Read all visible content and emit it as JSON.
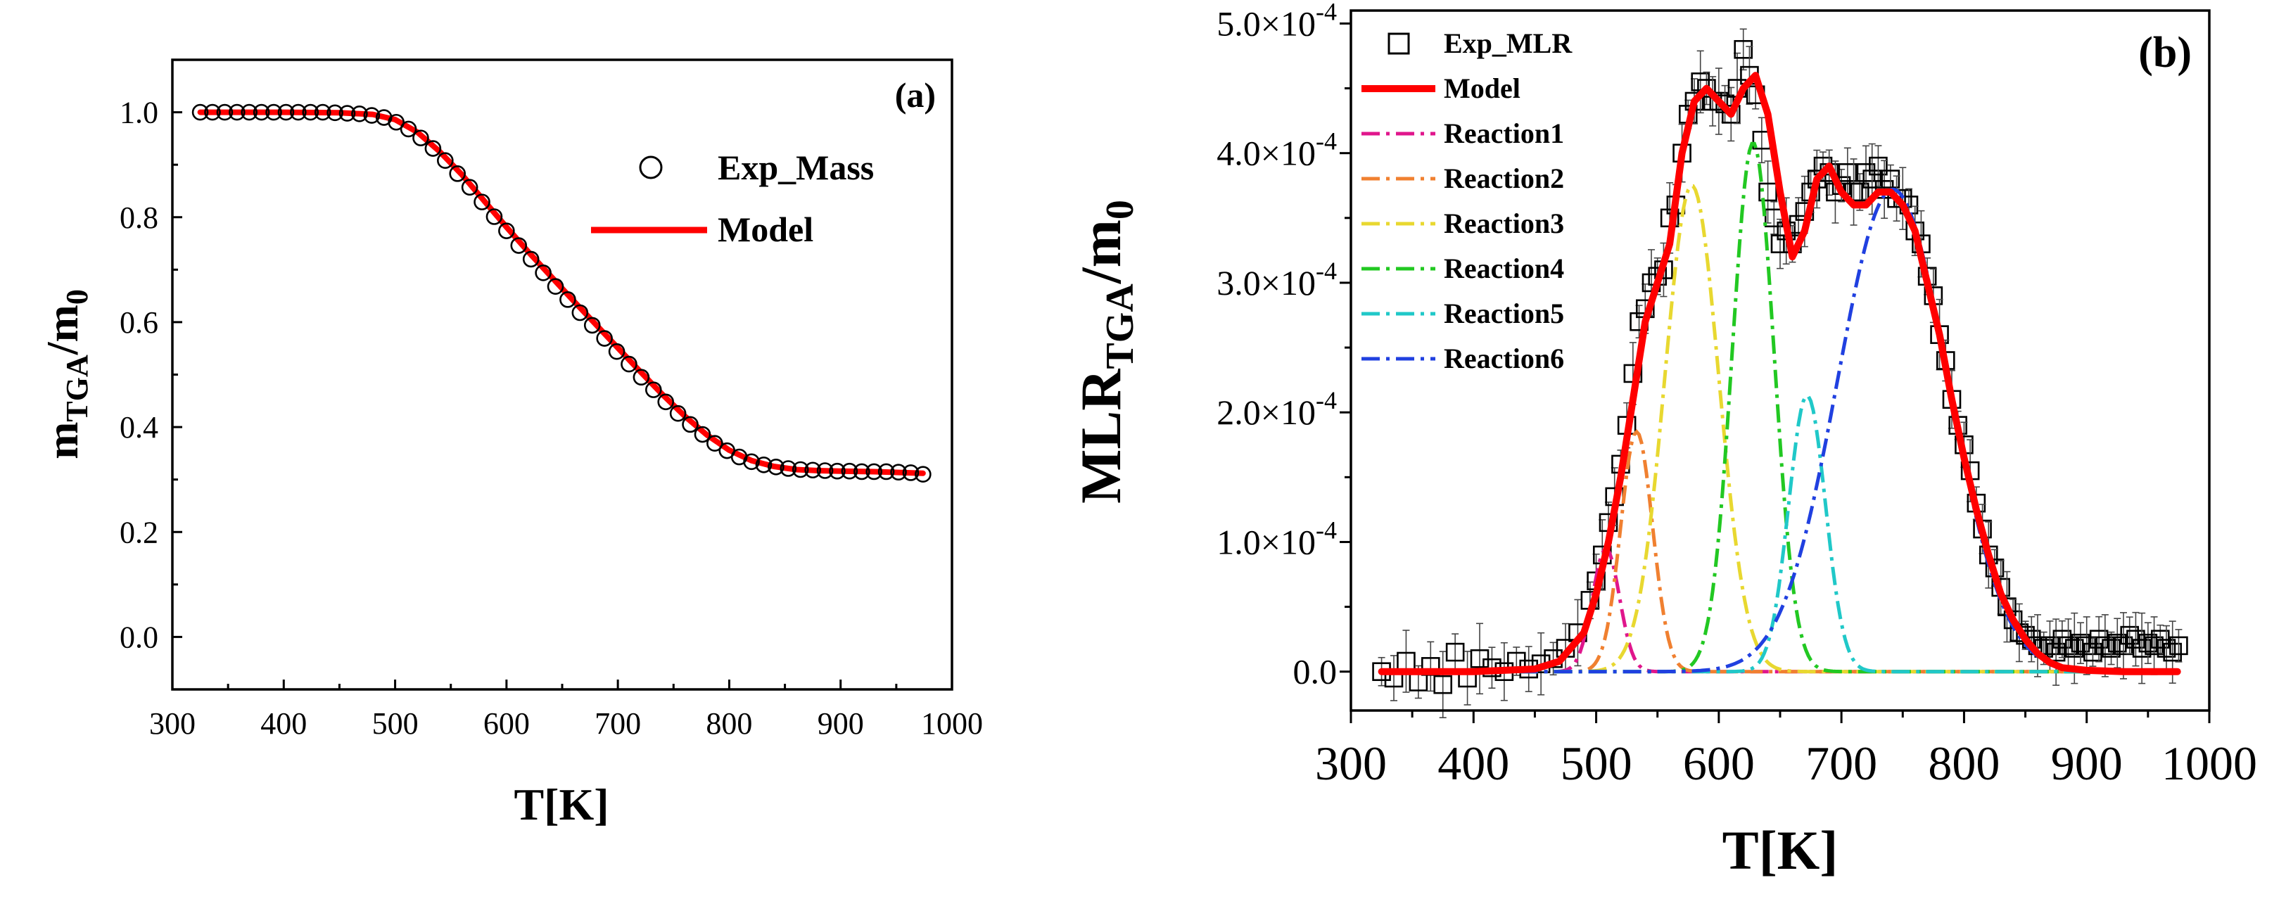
{
  "chart_data": [
    {
      "type": "scatter+line",
      "panel_label": "(a)",
      "xlabel": {
        "main": "T[K]"
      },
      "ylabel": {
        "main": "m",
        "sub": "TGA",
        "rest": "/m",
        "sub2": "0"
      },
      "xlim": [
        300,
        1000
      ],
      "ylim": [
        -0.1,
        1.1
      ],
      "xticks": [
        "300",
        "400",
        "500",
        "600",
        "700",
        "800",
        "900",
        "1000"
      ],
      "yticks": [
        "0.0",
        "0.2",
        "0.4",
        "0.6",
        "0.8",
        "1.0"
      ],
      "legend": {
        "position": "top-right",
        "entries": [
          "Exp_Mass",
          "Model"
        ]
      },
      "series": [
        {
          "name": "Exp_Mass",
          "style": "open-circle",
          "x": [
            325,
            336,
            347,
            358,
            369,
            380,
            391,
            402,
            413,
            424,
            435,
            446,
            457,
            468,
            479,
            490,
            501,
            512,
            523,
            534,
            545,
            556,
            567,
            578,
            589,
            600,
            611,
            622,
            633,
            644,
            655,
            666,
            677,
            688,
            699,
            710,
            721,
            732,
            743,
            754,
            765,
            776,
            787,
            798,
            809,
            820,
            831,
            842,
            853,
            864,
            875,
            886,
            897,
            908,
            919,
            930,
            941,
            952,
            963,
            974
          ],
          "y": [
            1.0,
            1.0,
            1.0,
            1.0,
            1.0,
            1.0,
            1.0,
            1.0,
            1.0,
            1.0,
            1.0,
            0.999,
            0.998,
            0.997,
            0.994,
            0.99,
            0.981,
            0.968,
            0.951,
            0.931,
            0.908,
            0.883,
            0.857,
            0.829,
            0.801,
            0.774,
            0.746,
            0.72,
            0.694,
            0.668,
            0.643,
            0.618,
            0.594,
            0.569,
            0.544,
            0.52,
            0.495,
            0.471,
            0.448,
            0.426,
            0.405,
            0.386,
            0.369,
            0.355,
            0.343,
            0.334,
            0.328,
            0.324,
            0.321,
            0.319,
            0.318,
            0.317,
            0.316,
            0.316,
            0.315,
            0.315,
            0.315,
            0.314,
            0.313,
            0.31
          ]
        },
        {
          "name": "Model",
          "style": "line",
          "color": "#ff0000",
          "x": [
            325,
            400,
            450,
            480,
            500,
            520,
            540,
            560,
            580,
            600,
            620,
            640,
            660,
            680,
            700,
            720,
            740,
            760,
            780,
            800,
            820,
            840,
            860,
            880,
            900,
            930,
            974
          ],
          "y": [
            1.0,
            1.0,
            0.999,
            0.996,
            0.986,
            0.962,
            0.925,
            0.881,
            0.831,
            0.781,
            0.733,
            0.687,
            0.641,
            0.596,
            0.551,
            0.506,
            0.462,
            0.421,
            0.385,
            0.356,
            0.336,
            0.325,
            0.319,
            0.317,
            0.316,
            0.315,
            0.312
          ]
        }
      ]
    },
    {
      "type": "scatter+line",
      "panel_label": "(b)",
      "xlabel": {
        "main": "T[K]"
      },
      "ylabel": {
        "main": "MLR",
        "sub": "TGA",
        "rest": "/m",
        "sub2": "0"
      },
      "xlim": [
        300,
        1000
      ],
      "ylim": [
        -3e-05,
        0.00051
      ],
      "xticks": [
        "300",
        "400",
        "500",
        "600",
        "700",
        "800",
        "900",
        "1000"
      ],
      "yticks": [
        {
          "value": 0,
          "label": "0.0"
        },
        {
          "value": 0.0001,
          "mant": "1.0",
          "times": "×10",
          "exp": "-4"
        },
        {
          "value": 0.0002,
          "mant": "2.0",
          "times": "×10",
          "exp": "-4"
        },
        {
          "value": 0.0003,
          "mant": "3.0",
          "times": "×10",
          "exp": "-4"
        },
        {
          "value": 0.0004,
          "mant": "4.0",
          "times": "×10",
          "exp": "-4"
        },
        {
          "value": 0.0005,
          "mant": "5.0",
          "times": "×10",
          "exp": "-4"
        }
      ],
      "legend": {
        "position": "top-left",
        "entries": [
          {
            "name": "Exp_MLR",
            "style": "open-square",
            "color": "#000000"
          },
          {
            "name": "Model",
            "style": "solid",
            "color": "#ff0000"
          },
          {
            "name": "Reaction1",
            "style": "dashdot",
            "color": "#e0168c"
          },
          {
            "name": "Reaction2",
            "style": "dashdot",
            "color": "#f08030"
          },
          {
            "name": "Reaction3",
            "style": "dashdot",
            "color": "#e8d830"
          },
          {
            "name": "Reaction4",
            "style": "dashdot",
            "color": "#22c822"
          },
          {
            "name": "Reaction5",
            "style": "dashdot",
            "color": "#20c8c8"
          },
          {
            "name": "Reaction6",
            "style": "dashdot",
            "color": "#2040e0"
          }
        ]
      },
      "reactions": [
        {
          "name": "Reaction1",
          "peak_T": 508,
          "peak_value": 9.5e-05,
          "width": 11,
          "color": "#e0168c"
        },
        {
          "name": "Reaction2",
          "peak_T": 533,
          "peak_value": 0.000185,
          "width": 13,
          "color": "#f08030"
        },
        {
          "name": "Reaction3",
          "peak_T": 578,
          "peak_value": 0.000375,
          "width": 22,
          "color": "#e8d830"
        },
        {
          "name": "Reaction4",
          "peak_T": 628,
          "peak_value": 0.000408,
          "width": 17,
          "color": "#22c822"
        },
        {
          "name": "Reaction5",
          "peak_T": 672,
          "peak_value": 0.000213,
          "width": 15,
          "color": "#20c8c8"
        },
        {
          "name": "Reaction6",
          "peak_T": 742,
          "peak_value": 0.000372,
          "width": 45,
          "color": "#2040e0"
        }
      ],
      "model": {
        "name": "Model",
        "color": "#ff0000",
        "x": [
          325,
          400,
          450,
          470,
          490,
          500,
          510,
          520,
          530,
          540,
          550,
          560,
          570,
          580,
          590,
          600,
          610,
          620,
          630,
          640,
          650,
          660,
          670,
          680,
          690,
          700,
          710,
          720,
          730,
          740,
          750,
          760,
          770,
          780,
          790,
          800,
          810,
          820,
          830,
          840,
          850,
          860,
          870,
          880,
          900,
          930,
          974
        ],
        "y": [
          0.0,
          0.0,
          2e-06,
          8e-06,
          3e-05,
          6e-05,
          0.0001,
          0.00015,
          0.00021,
          0.00027,
          0.0003,
          0.00033,
          0.0004,
          0.00044,
          0.00045,
          0.00044,
          0.00043,
          0.00045,
          0.00046,
          0.00043,
          0.00037,
          0.00032,
          0.00034,
          0.00038,
          0.00039,
          0.00037,
          0.00036,
          0.00036,
          0.00037,
          0.00037,
          0.00036,
          0.00034,
          0.0003,
          0.00026,
          0.00021,
          0.000165,
          0.000125,
          9e-05,
          6e-05,
          4e-05,
          2.5e-05,
          1.4e-05,
          7e-06,
          3e-06,
          1e-06,
          0.0,
          0.0
        ]
      },
      "experiment": {
        "name": "Exp_MLR",
        "x": [
          325,
          335,
          345,
          355,
          365,
          375,
          385,
          395,
          405,
          415,
          425,
          435,
          445,
          455,
          465,
          475,
          485,
          495,
          500,
          505,
          510,
          515,
          520,
          525,
          530,
          535,
          540,
          545,
          550,
          555,
          560,
          565,
          570,
          575,
          580,
          585,
          590,
          595,
          600,
          605,
          610,
          615,
          620,
          625,
          630,
          635,
          640,
          645,
          650,
          655,
          660,
          665,
          670,
          675,
          680,
          685,
          690,
          695,
          700,
          705,
          710,
          715,
          720,
          725,
          730,
          735,
          740,
          745,
          750,
          755,
          760,
          765,
          770,
          775,
          780,
          785,
          790,
          795,
          800,
          805,
          810,
          815,
          820,
          825,
          830,
          835,
          840,
          845,
          850,
          855,
          860,
          865,
          870,
          875,
          880,
          885,
          890,
          895,
          900,
          905,
          910,
          915,
          920,
          925,
          930,
          935,
          940,
          945,
          950,
          955,
          960,
          965,
          970,
          975
        ],
        "y": [
          0.0,
          -5e-06,
          8e-06,
          -8e-06,
          4e-06,
          -1e-05,
          1.5e-05,
          -5e-06,
          1e-05,
          3e-06,
          0.0,
          8e-06,
          2e-06,
          6e-06,
          1e-05,
          1.8e-05,
          3e-05,
          5.5e-05,
          7e-05,
          9e-05,
          0.000115,
          0.000135,
          0.00016,
          0.00019,
          0.00023,
          0.00027,
          0.00028,
          0.0003,
          0.000305,
          0.00031,
          0.00035,
          0.00036,
          0.0004,
          0.00043,
          0.00044,
          0.000455,
          0.00045,
          0.00044,
          0.00044,
          0.000438,
          0.00043,
          0.00045,
          0.00048,
          0.00046,
          0.000445,
          0.00041,
          0.00037,
          0.00035,
          0.00033,
          0.00034,
          0.00033,
          0.000345,
          0.000355,
          0.00037,
          0.00038,
          0.00039,
          0.000385,
          0.00037,
          0.000375,
          0.000385,
          0.00037,
          0.00037,
          0.000385,
          0.00038,
          0.00039,
          0.000372,
          0.00038,
          0.000365,
          0.000365,
          0.00036,
          0.00034,
          0.00033,
          0.000305,
          0.00029,
          0.00026,
          0.00024,
          0.00021,
          0.00019,
          0.000175,
          0.000155,
          0.00013,
          0.00011,
          9e-05,
          8e-05,
          6.5e-05,
          5e-05,
          4e-05,
          3e-05,
          2.8e-05,
          2.5e-05,
          2e-05,
          1.8e-05,
          2e-05,
          1.5e-05,
          2.5e-05,
          2e-05,
          1.8e-05,
          2.2e-05,
          2e-05,
          1.5e-05,
          2.5e-05,
          2e-05,
          1.8e-05,
          2.2e-05,
          2e-05,
          2.8e-05,
          2.5e-05,
          1.8e-05,
          2.2e-05,
          2e-05,
          2.5e-05,
          1.8e-05,
          1.5e-05,
          2e-05
        ]
      }
    }
  ]
}
